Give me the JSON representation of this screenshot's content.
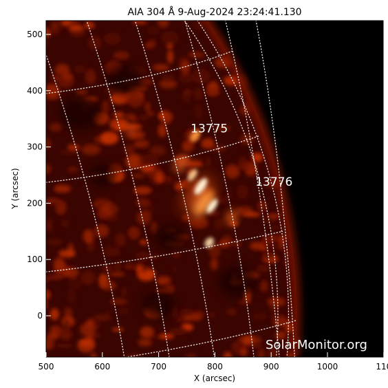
{
  "title": "AIA 304 Å  9-Aug-2024 23:24:41.130",
  "axes": {
    "xlabel": "X (arcsec)",
    "ylabel": "Y (arcsec)",
    "x_ticks": [
      "500",
      "600",
      "700",
      "800",
      "900",
      "1000",
      "110"
    ],
    "y_ticks": [
      "500",
      "400",
      "300",
      "200",
      "100",
      "0"
    ]
  },
  "regions": [
    {
      "label": "13775",
      "x_arcsec": 790,
      "y_arcsec": 326
    },
    {
      "label": "13776",
      "x_arcsec": 905,
      "y_arcsec": 231
    }
  ],
  "watermark": "SolarMonitor.org",
  "colors": {
    "background": "#000000",
    "plasma_dim": "#5a0a00",
    "plasma_mid": "#c83200",
    "plasma_bright": "#ff9a40",
    "plasma_hot": "#fff0d0",
    "grid": "#ffffff"
  }
}
